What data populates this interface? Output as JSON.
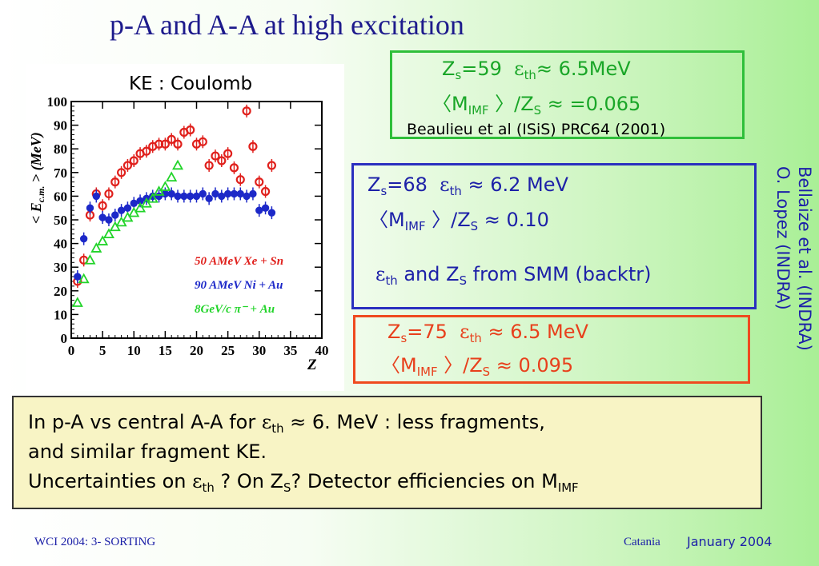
{
  "slide": {
    "title": "p-A and A-A at high excitation",
    "footer_left": "WCI 2004: 3- SORTING",
    "footer_place": "Catania",
    "footer_date": "January 2004",
    "credit_line1": "Bellaize et al. (INDRA)",
    "credit_line2": "O. Lopez (INDRA)"
  },
  "boxes": {
    "green": {
      "zs": "59",
      "eth": "6.5MeV",
      "ratio": "=0.065",
      "ref": "Beaulieu et al (ISiS) PRC64 (2001)"
    },
    "blue": {
      "zs": "68",
      "eth": "6.2 MeV",
      "ratio": "0.10",
      "note_part1": "and Z",
      "note_part2": "from SMM (backtr)"
    },
    "red": {
      "zs": "75",
      "eth": "6.5 MeV",
      "ratio": "0.095"
    },
    "note": {
      "line1_a": "In p-A vs central A-A for ",
      "line1_b": "6. MeV : less fragments,",
      "line2": "and similar fragment KE.",
      "line3_a": "Uncertainties on ",
      "line3_b": "? On Z",
      "line3_c": "? Detector efficiencies on M"
    }
  },
  "colors": {
    "title": "#1d1a8c",
    "xe_sn": "#e0201c",
    "ni_au": "#1c28c8",
    "pi_au": "#22d42a"
  },
  "chart_data": {
    "type": "scatter",
    "title": "KE :  Coulomb",
    "xlabel": "Z",
    "ylabel": "< E c.m. > (MeV)",
    "xlim": [
      0,
      40
    ],
    "ylim": [
      0,
      100
    ],
    "x_ticks": [
      0,
      5,
      10,
      15,
      20,
      25,
      30,
      35,
      40
    ],
    "y_ticks": [
      0,
      10,
      20,
      30,
      40,
      50,
      60,
      70,
      80,
      90,
      100
    ],
    "legend_position": "lower-right",
    "series": [
      {
        "name": "50 AMeV Xe + Sn",
        "marker": "open-circle",
        "color": "#e0201c",
        "x": [
          1,
          2,
          3,
          4,
          5,
          6,
          7,
          8,
          9,
          10,
          11,
          12,
          13,
          14,
          15,
          16,
          17,
          18,
          19,
          20,
          21,
          22,
          23,
          24,
          25,
          26,
          27,
          28,
          29,
          30,
          31,
          32
        ],
        "y": [
          24,
          33,
          52,
          61,
          56,
          61,
          66,
          70,
          73,
          75,
          78,
          79,
          81,
          82,
          82,
          84,
          82,
          87,
          88,
          82,
          83,
          73,
          77,
          75,
          78,
          72,
          67,
          96,
          81,
          66,
          62,
          73
        ]
      },
      {
        "name": "90 AMeV Ni + Au",
        "marker": "filled-circle",
        "color": "#1c28c8",
        "x": [
          1,
          2,
          3,
          4,
          5,
          6,
          7,
          8,
          9,
          10,
          11,
          12,
          13,
          14,
          15,
          16,
          17,
          18,
          19,
          20,
          21,
          22,
          23,
          24,
          25,
          26,
          27,
          28,
          29,
          30,
          31,
          32
        ],
        "y": [
          26,
          42,
          55,
          60,
          51,
          50,
          52,
          54,
          55,
          57,
          58,
          59,
          60,
          60,
          61,
          61,
          60,
          60,
          60,
          60,
          61,
          59,
          61,
          60,
          61,
          61,
          61,
          60,
          61,
          54,
          55,
          53
        ]
      },
      {
        "name": "8GeV/c π⁻ + Au",
        "marker": "open-triangle",
        "color": "#22d42a",
        "x": [
          1,
          2,
          3,
          4,
          5,
          6,
          7,
          8,
          9,
          10,
          11,
          12,
          13,
          14,
          15,
          16,
          17
        ],
        "y": [
          15,
          25,
          33,
          38,
          41,
          44,
          47,
          49,
          51,
          53,
          55,
          57,
          59,
          62,
          64,
          68,
          73
        ]
      }
    ]
  }
}
